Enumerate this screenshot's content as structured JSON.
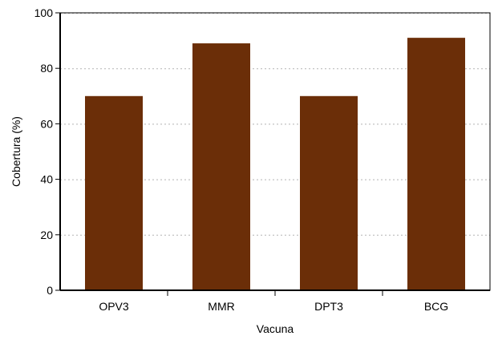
{
  "chart_data": {
    "type": "bar",
    "categories": [
      "OPV3",
      "MMR",
      "DPT3",
      "BCG"
    ],
    "values": [
      70,
      89,
      70,
      91
    ],
    "xlabel": "Vacuna",
    "ylabel": "Cobertura (%)",
    "ylim": [
      0,
      100
    ],
    "yticks": [
      0,
      20,
      40,
      60,
      80,
      100
    ],
    "grid": true,
    "bar_color": "#6b2e08"
  }
}
